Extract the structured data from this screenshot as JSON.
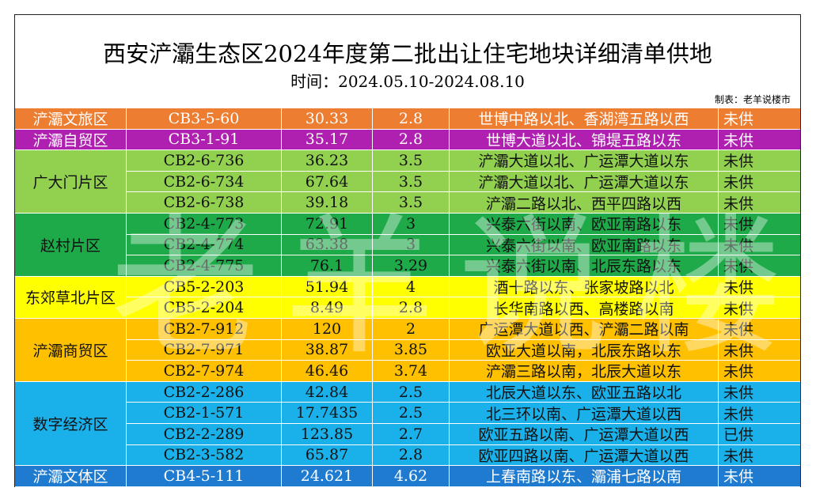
{
  "title": "西安浐灞生态区2024年度第二批出让住宅地块详细清单供地",
  "subtitle": "时间：2024.05.10-2024.08.10",
  "maker": "制表：老羊说楼市",
  "watermark": "老羊说楼市",
  "colors": {
    "orange": "#ed7d31",
    "magenta": "#b020b0",
    "lightgreen": "#92d050",
    "green": "#1faa4a",
    "yellow": "#ffff00",
    "amber": "#ffc000",
    "skyblue": "#1ab0ea",
    "blue": "#1f7bd0"
  },
  "groups": [
    {
      "name": "浐灞文旅区",
      "color": "#ed7d31",
      "rows": [
        {
          "code": "CB3-5-60",
          "area": "30.33",
          "far": "2.8",
          "location": "世博中路以北、香湖湾五路以西",
          "status": "未供"
        }
      ]
    },
    {
      "name": "浐灞自贸区",
      "color": "#b020b0",
      "rows": [
        {
          "code": "CB3-1-91",
          "area": "35.17",
          "far": "2.8",
          "location": "世博大道以北、锦堤五路以东",
          "status": "未供"
        }
      ]
    },
    {
      "name": "广大门片区",
      "color": "#92d050",
      "rows": [
        {
          "code": "CB2-6-736",
          "area": "36.23",
          "far": "3.5",
          "location": "浐灞大道以北、广运潭大道以东",
          "status": "未供"
        },
        {
          "code": "CB2-6-734",
          "area": "67.64",
          "far": "3.5",
          "location": "浐灞大道以北、广运潭大道以东",
          "status": "未供"
        },
        {
          "code": "CB2-6-738",
          "area": "39.18",
          "far": "3.5",
          "location": "浐灞二路以北、西平四路以西",
          "status": "未供"
        }
      ]
    },
    {
      "name": "赵村片区",
      "color": "#1faa4a",
      "rows": [
        {
          "code": "CB2-4-773",
          "area": "72.91",
          "far": "3",
          "location": "兴泰六街以南、欧亚南路以东",
          "status": "未供"
        },
        {
          "code": "CB2-4-774",
          "area": "63.38",
          "far": "3",
          "location": "兴泰六街以南、欧亚南路以东",
          "status": "未供"
        },
        {
          "code": "CB2-4-775",
          "area": "76.1",
          "far": "3.29",
          "location": "兴泰六街以南、北辰东路以东",
          "status": "未供"
        }
      ]
    },
    {
      "name": "东郊草北片区",
      "color": "#ffff00",
      "rows": [
        {
          "code": "CB5-2-203",
          "area": "51.94",
          "far": "4",
          "location": "酒十路以东、张家坡路以北",
          "status": "未供"
        },
        {
          "code": "CB5-2-204",
          "area": "8.49",
          "far": "2.8",
          "location": "长华南路以西、高楼路以南",
          "status": "未供"
        }
      ]
    },
    {
      "name": "浐灞商贸区",
      "color": "#ffc000",
      "rows": [
        {
          "code": "CB2-7-912",
          "area": "120",
          "far": "2",
          "location": "广运潭大道以西、浐灞二路以南",
          "status": "未供"
        },
        {
          "code": "CB2-7-971",
          "area": "38.87",
          "far": "3.85",
          "location": "欧亚大道以南，北辰东路以东",
          "status": "未供"
        },
        {
          "code": "CB2-7-974",
          "area": "46.46",
          "far": "3.74",
          "location": "浐灞三路以南，北辰大道以东",
          "status": "未供"
        }
      ]
    },
    {
      "name": "数字经济区",
      "color": "#1ab0ea",
      "rows": [
        {
          "code": "CB2-2-286",
          "area": "42.84",
          "far": "2.5",
          "location": "北辰大道以东、欧亚五路以北",
          "status": "未供"
        },
        {
          "code": "CB2-1-571",
          "area": "17.7435",
          "far": "2.5",
          "location": "北三环以南、广运潭大道以西",
          "status": "未供"
        },
        {
          "code": "CB2-2-289",
          "area": "123.85",
          "far": "2.7",
          "location": "欧亚五路以南、广运潭大道以西",
          "status": "已供"
        },
        {
          "code": "CB2-3-582",
          "area": "65.87",
          "far": "2.8",
          "location": "欧亚四路以南、广运潭大道以西",
          "status": "未供"
        }
      ]
    },
    {
      "name": "浐灞文体区",
      "color": "#1f7bd0",
      "rows": [
        {
          "code": "CB4-5-111",
          "area": "24.621",
          "far": "4.62",
          "location": "上春南路以东、灞浦七路以南",
          "status": "未供"
        }
      ]
    }
  ]
}
